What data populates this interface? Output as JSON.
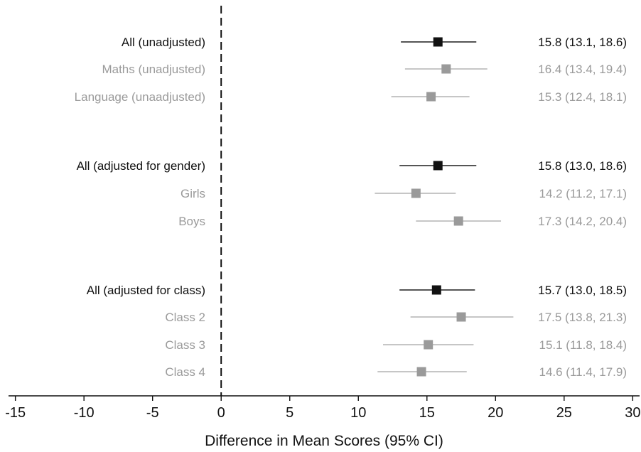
{
  "chart_data": {
    "type": "forest",
    "xlabel": "Difference in Mean Scores (95% CI)",
    "xlim": [
      -15.5,
      30.5
    ],
    "xticks": [
      -15,
      -10,
      -5,
      0,
      5,
      10,
      15,
      20,
      25,
      30
    ],
    "reference_line": 0,
    "colors": {
      "primary": "#111111",
      "primary_ci": "#555555",
      "secondary": "#9a9a9a",
      "secondary_ci": "#c6c6c6"
    },
    "rows": [
      {
        "label": "All (unadjusted)",
        "estimate": 15.8,
        "lower": 13.1,
        "upper": 18.6,
        "text": "15.8 (13.1, 18.6)",
        "emphasis": true
      },
      {
        "label": "Maths (unadjusted)",
        "estimate": 16.4,
        "lower": 13.4,
        "upper": 19.4,
        "text": "16.4 (13.4, 19.4)",
        "emphasis": false
      },
      {
        "label": "Language (unaadjusted)",
        "estimate": 15.3,
        "lower": 12.4,
        "upper": 18.1,
        "text": "15.3 (12.4, 18.1)",
        "emphasis": false
      },
      {
        "label": "All (adjusted for gender)",
        "estimate": 15.8,
        "lower": 13.0,
        "upper": 18.6,
        "text": "15.8 (13.0, 18.6)",
        "emphasis": true
      },
      {
        "label": "Girls",
        "estimate": 14.2,
        "lower": 11.2,
        "upper": 17.1,
        "text": "14.2 (11.2, 17.1)",
        "emphasis": false
      },
      {
        "label": "Boys",
        "estimate": 17.3,
        "lower": 14.2,
        "upper": 20.4,
        "text": "17.3 (14.2, 20.4)",
        "emphasis": false
      },
      {
        "label": "All (adjusted for class)",
        "estimate": 15.7,
        "lower": 13.0,
        "upper": 18.5,
        "text": "15.7 (13.0, 18.5)",
        "emphasis": true
      },
      {
        "label": "Class 2",
        "estimate": 17.5,
        "lower": 13.8,
        "upper": 21.3,
        "text": "17.5 (13.8, 21.3)",
        "emphasis": false
      },
      {
        "label": "Class 3",
        "estimate": 15.1,
        "lower": 11.8,
        "upper": 18.4,
        "text": "15.1 (11.8, 18.4)",
        "emphasis": false
      },
      {
        "label": "Class 4",
        "estimate": 14.6,
        "lower": 11.4,
        "upper": 17.9,
        "text": "14.6 (11.4, 17.9)",
        "emphasis": false
      }
    ]
  }
}
